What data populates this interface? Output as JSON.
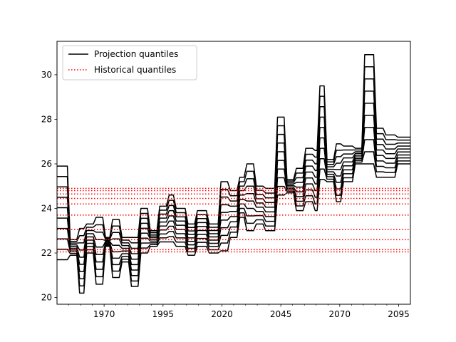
{
  "chart_data": {
    "type": "line",
    "title": "",
    "xlabel": "",
    "ylabel": "",
    "xlim": [
      1950,
      2100
    ],
    "ylim": [
      19.7,
      31.5
    ],
    "x_ticks": [
      1970,
      1995,
      2020,
      2045,
      2070,
      2095
    ],
    "y_ticks": [
      20,
      22,
      24,
      26,
      28,
      30
    ],
    "grid": false,
    "legend": {
      "placement": "top-left",
      "entries": [
        {
          "label": "Projection quantiles",
          "style": "solid",
          "color": "#000000"
        },
        {
          "label": "Historical quantiles",
          "style": "dotted",
          "color": "#ff0000"
        }
      ]
    },
    "historical_quantiles": [
      22.05,
      22.15,
      22.6,
      23.05,
      23.7,
      24.2,
      24.45,
      24.65,
      24.8,
      24.9
    ],
    "projection_series": {
      "line_color": "#000000",
      "x_start": 1950,
      "x_end": 2100,
      "segments": [
        {
          "x": [
            1950,
            1955
          ],
          "low": 21.7,
          "high": 25.9
        },
        {
          "x": [
            1955,
            1959
          ],
          "low": 21.9,
          "high": 22.6
        },
        {
          "x": [
            1959,
            1962
          ],
          "low": 20.2,
          "high": 23.1
        },
        {
          "x": [
            1962,
            1966
          ],
          "low": 22.0,
          "high": 23.3
        },
        {
          "x": [
            1966,
            1970
          ],
          "low": 20.6,
          "high": 23.6
        },
        {
          "x": [
            1970,
            1973
          ],
          "low": 22.3,
          "high": 22.7
        },
        {
          "x": [
            1973,
            1977
          ],
          "low": 20.9,
          "high": 23.5
        },
        {
          "x": [
            1977,
            1981
          ],
          "low": 21.6,
          "high": 22.7
        },
        {
          "x": [
            1981,
            1985
          ],
          "low": 20.5,
          "high": 22.7
        },
        {
          "x": [
            1985,
            1989
          ],
          "low": 22.0,
          "high": 24.0
        },
        {
          "x": [
            1989,
            1993
          ],
          "low": 22.3,
          "high": 23.0
        },
        {
          "x": [
            1993,
            1997
          ],
          "low": 22.5,
          "high": 24.1
        },
        {
          "x": [
            1997,
            2000
          ],
          "low": 22.5,
          "high": 24.6
        },
        {
          "x": [
            2000,
            2005
          ],
          "low": 22.3,
          "high": 24.0
        },
        {
          "x": [
            2005,
            2009
          ],
          "low": 21.9,
          "high": 23.3
        },
        {
          "x": [
            2009,
            2014
          ],
          "low": 22.3,
          "high": 23.9
        },
        {
          "x": [
            2014,
            2019
          ],
          "low": 22.0,
          "high": 23.3
        },
        {
          "x": [
            2019,
            2023
          ],
          "low": 22.1,
          "high": 25.2
        },
        {
          "x": [
            2023,
            2027
          ],
          "low": 22.7,
          "high": 24.8
        },
        {
          "x": [
            2027,
            2030
          ],
          "low": 23.6,
          "high": 25.4
        },
        {
          "x": [
            2030,
            2034
          ],
          "low": 23.0,
          "high": 26.0
        },
        {
          "x": [
            2034,
            2038
          ],
          "low": 23.3,
          "high": 25.0
        },
        {
          "x": [
            2038,
            2043
          ],
          "low": 23.0,
          "high": 24.9
        },
        {
          "x": [
            2043,
            2047
          ],
          "low": 24.6,
          "high": 28.1
        },
        {
          "x": [
            2047,
            2051
          ],
          "low": 24.7,
          "high": 25.3
        },
        {
          "x": [
            2051,
            2055
          ],
          "low": 23.9,
          "high": 25.8
        },
        {
          "x": [
            2055,
            2059
          ],
          "low": 24.3,
          "high": 26.7
        },
        {
          "x": [
            2059,
            2061
          ],
          "low": 23.9,
          "high": 26.6
        },
        {
          "x": [
            2061,
            2064
          ],
          "low": 25.3,
          "high": 29.5
        },
        {
          "x": [
            2064,
            2068
          ],
          "low": 25.2,
          "high": 26.2
        },
        {
          "x": [
            2068,
            2071
          ],
          "low": 24.3,
          "high": 26.9
        },
        {
          "x": [
            2071,
            2076
          ],
          "low": 25.2,
          "high": 26.8
        },
        {
          "x": [
            2076,
            2080
          ],
          "low": 26.0,
          "high": 26.7
        },
        {
          "x": [
            2080,
            2085
          ],
          "low": 26.0,
          "high": 30.9
        },
        {
          "x": [
            2085,
            2089
          ],
          "low": 25.4,
          "high": 27.6
        },
        {
          "x": [
            2089,
            2094
          ],
          "low": 25.4,
          "high": 27.3
        },
        {
          "x": [
            2094,
            2100
          ],
          "low": 26.0,
          "high": 27.2
        }
      ],
      "count": 10
    }
  }
}
